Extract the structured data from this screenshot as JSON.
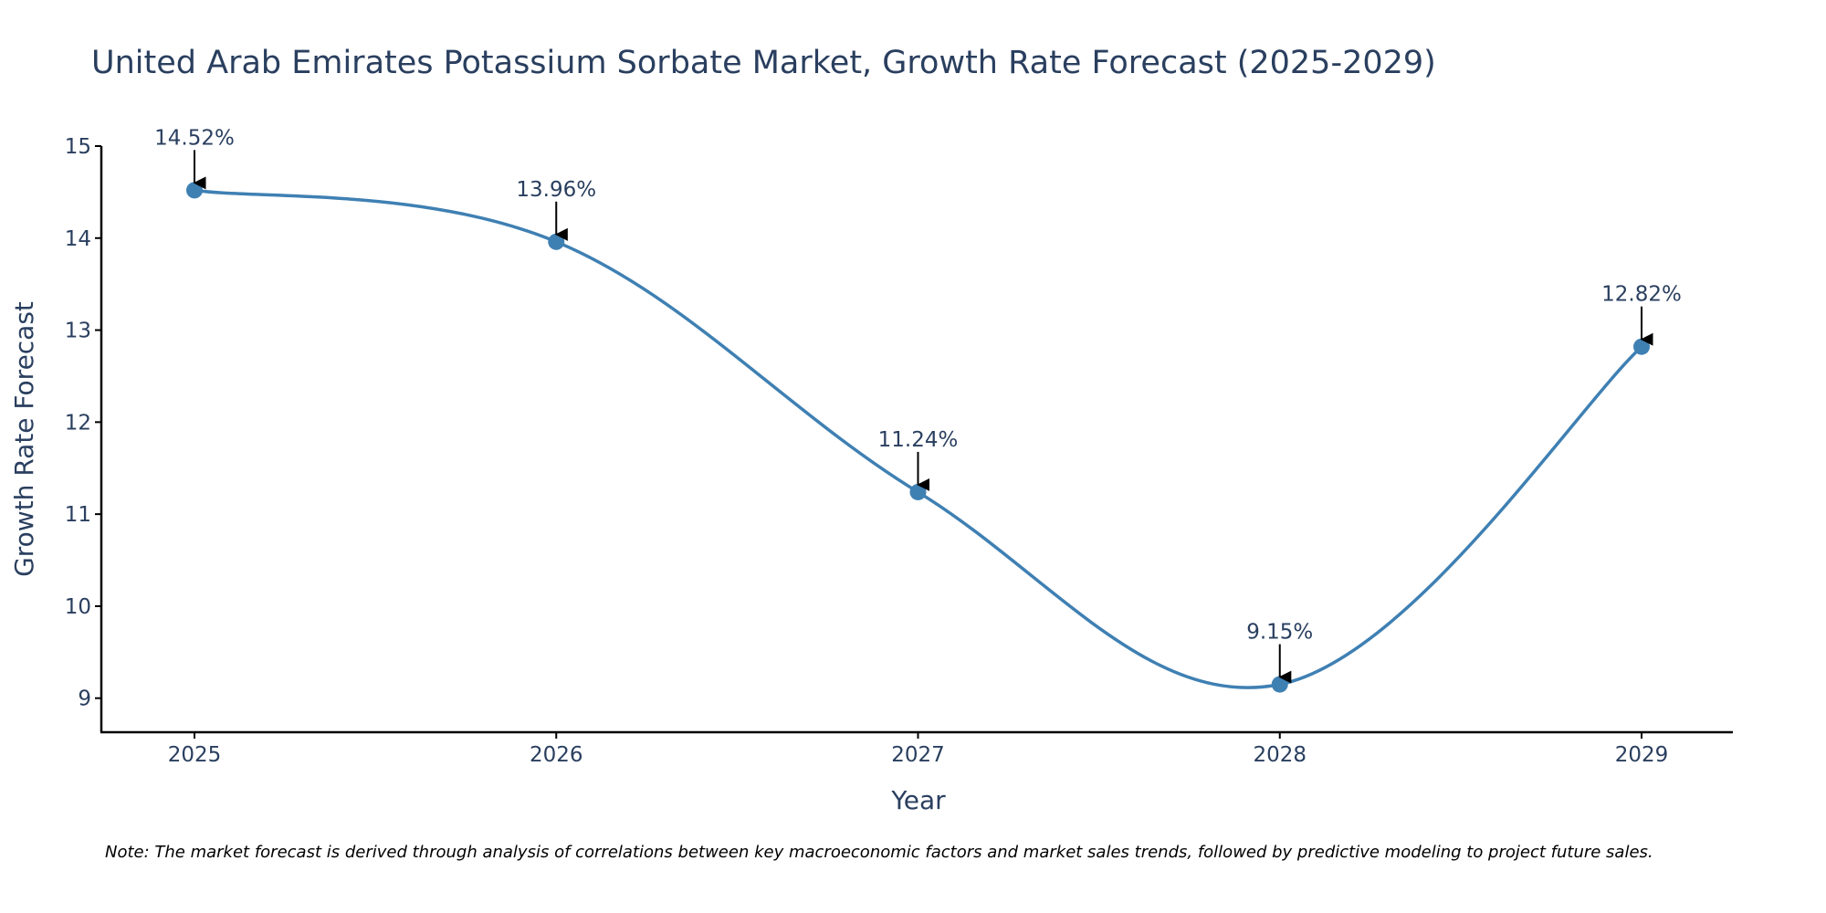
{
  "chart_data": {
    "type": "line",
    "title": "United Arab Emirates Potassium Sorbate Market, Growth Rate Forecast (2025-2029)",
    "xlabel": "Year",
    "ylabel": "Growth Rate Forecast",
    "categories": [
      "2025",
      "2026",
      "2027",
      "2028",
      "2029"
    ],
    "series": [
      {
        "name": "Growth Rate Forecast",
        "values": [
          14.52,
          13.96,
          11.24,
          9.15,
          12.82
        ],
        "labels": [
          "14.52%",
          "13.96%",
          "11.24%",
          "9.15%",
          "12.82%"
        ]
      }
    ],
    "yticks": [
      9,
      10,
      11,
      12,
      13,
      14,
      15
    ],
    "ytick_labels": [
      "9",
      "10",
      "11",
      "12",
      "13",
      "14",
      "15"
    ],
    "ylim": [
      8.63,
      15.0
    ],
    "grid": false,
    "line_shape": "spline",
    "colors": {
      "line": "#3f80b3",
      "marker": "#3f80b3",
      "axis": "#000000",
      "text": "#2a3f5f",
      "arrow": "#000000"
    },
    "note": "Note: The market forecast is derived through analysis of correlations between key macroeconomic factors and market sales trends, followed by predictive modeling to project future sales."
  }
}
